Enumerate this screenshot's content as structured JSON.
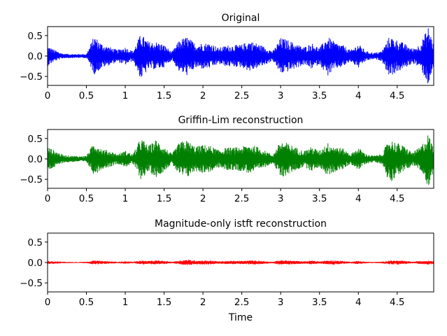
{
  "chart_data": [
    {
      "type": "line",
      "title": "Original",
      "xlabel": "",
      "xlim": [
        0,
        4.97
      ],
      "ylim": [
        -0.72,
        0.72
      ],
      "xticks": [
        0,
        0.5,
        1,
        1.5,
        2,
        2.5,
        3,
        3.5,
        4,
        4.5
      ],
      "xtick_labels": [
        "0",
        "0.5",
        "1",
        "1.5",
        "2",
        "2.5",
        "3",
        "3.5",
        "4",
        "4.5"
      ],
      "yticks": [
        0.5,
        0.0,
        -0.5
      ],
      "ytick_labels": [
        "0.5",
        "0.0",
        "−0.5"
      ],
      "color": "#0000ff",
      "series": [
        {
          "x": [
            0,
            0.1,
            0.2,
            0.3,
            0.4,
            0.5,
            0.6,
            0.7,
            0.8,
            0.9,
            1.0,
            1.1,
            1.2,
            1.3,
            1.4,
            1.5,
            1.6,
            1.7,
            1.8,
            1.9,
            2.0,
            2.1,
            2.2,
            2.3,
            2.4,
            2.5,
            2.6,
            2.7,
            2.8,
            2.9,
            3.0,
            3.1,
            3.2,
            3.3,
            3.4,
            3.5,
            3.6,
            3.7,
            3.8,
            3.9,
            4.0,
            4.1,
            4.2,
            4.3,
            4.4,
            4.5,
            4.6,
            4.7,
            4.8,
            4.9,
            4.97
          ],
          "y_max": [
            0.25,
            0.14,
            0.06,
            0.05,
            0.05,
            0.05,
            0.5,
            0.3,
            0.22,
            0.15,
            0.22,
            0.12,
            0.55,
            0.35,
            0.35,
            0.28,
            0.1,
            0.4,
            0.48,
            0.3,
            0.32,
            0.32,
            0.2,
            0.26,
            0.27,
            0.28,
            0.38,
            0.31,
            0.22,
            0.12,
            0.45,
            0.39,
            0.3,
            0.22,
            0.32,
            0.2,
            0.48,
            0.34,
            0.27,
            0.14,
            0.3,
            0.12,
            0.08,
            0.12,
            0.48,
            0.4,
            0.3,
            0.18,
            0.3,
            0.72,
            0.3
          ],
          "y_min": [
            -0.25,
            -0.12,
            -0.06,
            -0.05,
            -0.05,
            -0.05,
            -0.45,
            -0.3,
            -0.22,
            -0.15,
            -0.22,
            -0.12,
            -0.58,
            -0.33,
            -0.33,
            -0.28,
            -0.1,
            -0.4,
            -0.48,
            -0.3,
            -0.32,
            -0.3,
            -0.2,
            -0.26,
            -0.27,
            -0.28,
            -0.38,
            -0.3,
            -0.22,
            -0.12,
            -0.45,
            -0.38,
            -0.3,
            -0.22,
            -0.32,
            -0.2,
            -0.5,
            -0.33,
            -0.27,
            -0.14,
            -0.3,
            -0.12,
            -0.08,
            -0.12,
            -0.5,
            -0.4,
            -0.3,
            -0.18,
            -0.3,
            -0.72,
            -0.3
          ]
        }
      ]
    },
    {
      "type": "line",
      "title": "Griffin-Lim reconstruction",
      "xlabel": "",
      "xlim": [
        0,
        4.97
      ],
      "ylim": [
        -0.72,
        0.72
      ],
      "xticks": [
        0,
        0.5,
        1,
        1.5,
        2,
        2.5,
        3,
        3.5,
        4,
        4.5
      ],
      "xtick_labels": [
        "0",
        "0.5",
        "1",
        "1.5",
        "2",
        "2.5",
        "3",
        "3.5",
        "4",
        "4.5"
      ],
      "yticks": [
        0.5,
        0.0,
        -0.5
      ],
      "ytick_labels": [
        "0.5",
        "0.0",
        "−0.5"
      ],
      "color": "#008000",
      "series": [
        {
          "x": [
            0,
            0.1,
            0.2,
            0.3,
            0.4,
            0.5,
            0.6,
            0.7,
            0.8,
            0.9,
            1.0,
            1.1,
            1.2,
            1.3,
            1.4,
            1.5,
            1.6,
            1.7,
            1.8,
            1.9,
            2.0,
            2.1,
            2.2,
            2.3,
            2.4,
            2.5,
            2.6,
            2.7,
            2.8,
            2.9,
            3.0,
            3.1,
            3.2,
            3.3,
            3.4,
            3.5,
            3.6,
            3.7,
            3.8,
            3.9,
            4.0,
            4.1,
            4.2,
            4.3,
            4.4,
            4.5,
            4.6,
            4.7,
            4.8,
            4.9,
            4.97
          ],
          "y_max": [
            0.3,
            0.2,
            0.1,
            0.08,
            0.07,
            0.08,
            0.42,
            0.25,
            0.2,
            0.12,
            0.2,
            0.12,
            0.52,
            0.32,
            0.48,
            0.3,
            0.12,
            0.42,
            0.46,
            0.3,
            0.35,
            0.32,
            0.22,
            0.28,
            0.28,
            0.3,
            0.36,
            0.3,
            0.2,
            0.1,
            0.44,
            0.38,
            0.28,
            0.2,
            0.3,
            0.2,
            0.4,
            0.32,
            0.26,
            0.12,
            0.28,
            0.12,
            0.08,
            0.12,
            0.48,
            0.4,
            0.3,
            0.16,
            0.3,
            0.62,
            0.3
          ],
          "y_min": [
            -0.3,
            -0.2,
            -0.1,
            -0.08,
            -0.07,
            -0.08,
            -0.4,
            -0.25,
            -0.2,
            -0.12,
            -0.2,
            -0.12,
            -0.5,
            -0.32,
            -0.45,
            -0.3,
            -0.12,
            -0.42,
            -0.46,
            -0.3,
            -0.35,
            -0.32,
            -0.22,
            -0.28,
            -0.28,
            -0.3,
            -0.36,
            -0.3,
            -0.2,
            -0.1,
            -0.48,
            -0.38,
            -0.28,
            -0.2,
            -0.3,
            -0.2,
            -0.42,
            -0.32,
            -0.26,
            -0.12,
            -0.28,
            -0.12,
            -0.08,
            -0.12,
            -0.6,
            -0.4,
            -0.3,
            -0.16,
            -0.3,
            -0.68,
            -0.3
          ]
        }
      ]
    },
    {
      "type": "line",
      "title": "Magnitude-only istft reconstruction",
      "xlabel": "Time",
      "xlim": [
        0,
        4.97
      ],
      "ylim": [
        -0.72,
        0.72
      ],
      "xticks": [
        0,
        0.5,
        1,
        1.5,
        2,
        2.5,
        3,
        3.5,
        4,
        4.5
      ],
      "xtick_labels": [
        "0",
        "0.5",
        "1",
        "1.5",
        "2",
        "2.5",
        "3",
        "3.5",
        "4",
        "4.5"
      ],
      "yticks": [
        0.5,
        0.0,
        -0.5
      ],
      "ytick_labels": [
        "0.5",
        "0.0",
        "−0.5"
      ],
      "color": "#ff0000",
      "series": [
        {
          "x": [
            0,
            0.1,
            0.2,
            0.3,
            0.4,
            0.5,
            0.6,
            0.7,
            0.8,
            0.9,
            1.0,
            1.1,
            1.2,
            1.3,
            1.4,
            1.5,
            1.6,
            1.7,
            1.8,
            1.9,
            2.0,
            2.1,
            2.2,
            2.3,
            2.4,
            2.5,
            2.6,
            2.7,
            2.8,
            2.9,
            3.0,
            3.1,
            3.2,
            3.3,
            3.4,
            3.5,
            3.6,
            3.7,
            3.8,
            3.9,
            4.0,
            4.1,
            4.2,
            4.3,
            4.4,
            4.5,
            4.6,
            4.7,
            4.8,
            4.9,
            4.97
          ],
          "y_max": [
            0.04,
            0.03,
            0.02,
            0.015,
            0.015,
            0.02,
            0.05,
            0.04,
            0.03,
            0.02,
            0.03,
            0.02,
            0.05,
            0.04,
            0.05,
            0.04,
            0.02,
            0.05,
            0.07,
            0.05,
            0.05,
            0.05,
            0.03,
            0.04,
            0.04,
            0.04,
            0.05,
            0.05,
            0.03,
            0.02,
            0.06,
            0.05,
            0.04,
            0.03,
            0.05,
            0.03,
            0.05,
            0.05,
            0.04,
            0.02,
            0.04,
            0.02,
            0.015,
            0.02,
            0.05,
            0.05,
            0.04,
            0.02,
            0.04,
            0.05,
            0.04
          ],
          "y_min": [
            -0.04,
            -0.03,
            -0.02,
            -0.015,
            -0.015,
            -0.02,
            -0.05,
            -0.04,
            -0.03,
            -0.02,
            -0.03,
            -0.02,
            -0.05,
            -0.04,
            -0.05,
            -0.04,
            -0.02,
            -0.05,
            -0.07,
            -0.05,
            -0.05,
            -0.05,
            -0.03,
            -0.04,
            -0.04,
            -0.04,
            -0.05,
            -0.05,
            -0.03,
            -0.02,
            -0.06,
            -0.05,
            -0.04,
            -0.03,
            -0.05,
            -0.03,
            -0.05,
            -0.05,
            -0.04,
            -0.02,
            -0.04,
            -0.02,
            -0.015,
            -0.02,
            -0.05,
            -0.05,
            -0.04,
            -0.02,
            -0.04,
            -0.05,
            -0.04
          ]
        }
      ]
    }
  ]
}
